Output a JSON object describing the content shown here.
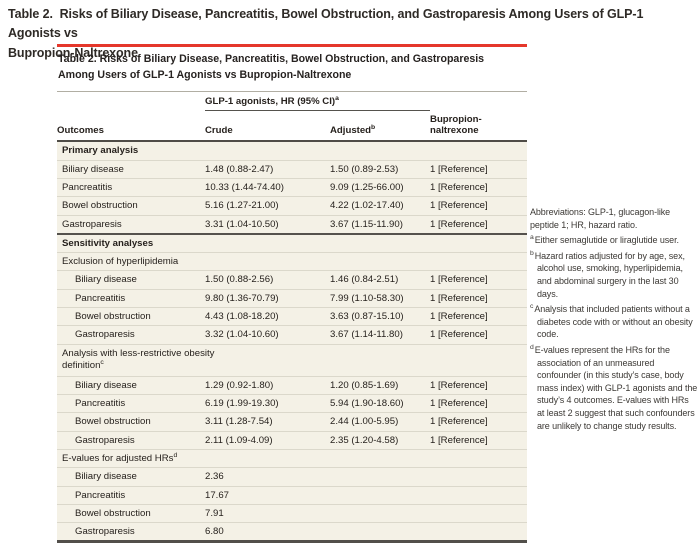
{
  "page_title": {
    "line1": "Table 2.  Risks of Biliary Disease, Pancreatitis, Bowel Obstruction, and Gastroparesis Among Users of GLP-1 Agonists vs",
    "line2": "Bupropion-Naltrexone"
  },
  "accent_color": "#e5372b",
  "table": {
    "title_line1": "Table 2. Risks of Biliary Disease, Pancreatitis, Bowel Obstruction, and Gastroparesis",
    "title_line2": "Among Users of GLP-1 Agonists vs Bupropion-Naltrexone",
    "header": {
      "group": "GLP-1 agonists, HR (95% CI)",
      "group_sup": "a",
      "outcomes": "Outcomes",
      "crude": "Crude",
      "adjusted": "Adjusted",
      "adjusted_sup": "b",
      "comparator": "Bupropion-naltrexone"
    },
    "rows": [
      {
        "kind": "section",
        "label": "Primary analysis"
      },
      {
        "kind": "data",
        "indent": 0,
        "outcome": "Biliary disease",
        "crude": "1.48 (0.88-2.47)",
        "adjusted": "1.50 (0.89-2.53)",
        "ref": "1 [Reference]"
      },
      {
        "kind": "data",
        "indent": 0,
        "outcome": "Pancreatitis",
        "crude": "10.33 (1.44-74.40)",
        "adjusted": "9.09 (1.25-66.00)",
        "ref": "1 [Reference]"
      },
      {
        "kind": "data",
        "indent": 0,
        "outcome": "Bowel obstruction",
        "crude": "5.16 (1.27-21.00)",
        "adjusted": "4.22 (1.02-17.40)",
        "ref": "1 [Reference]"
      },
      {
        "kind": "data",
        "indent": 0,
        "outcome": "Gastroparesis",
        "crude": "3.31 (1.04-10.50)",
        "adjusted": "3.67 (1.15-11.90)",
        "ref": "1 [Reference]"
      },
      {
        "kind": "section",
        "label": "Sensitivity analyses",
        "divider": true
      },
      {
        "kind": "subsection",
        "label": "Exclusion of hyperlipidemia",
        "sup": ""
      },
      {
        "kind": "data",
        "indent": 1,
        "outcome": "Biliary disease",
        "crude": "1.50 (0.88-2.56)",
        "adjusted": "1.46 (0.84-2.51)",
        "ref": "1 [Reference]"
      },
      {
        "kind": "data",
        "indent": 1,
        "outcome": "Pancreatitis",
        "crude": "9.80 (1.36-70.79)",
        "adjusted": "7.99 (1.10-58.30)",
        "ref": "1 [Reference]"
      },
      {
        "kind": "data",
        "indent": 1,
        "outcome": "Bowel obstruction",
        "crude": "4.43 (1.08-18.20)",
        "adjusted": "3.63 (0.87-15.10)",
        "ref": "1 [Reference]"
      },
      {
        "kind": "data",
        "indent": 1,
        "outcome": "Gastroparesis",
        "crude": "3.32 (1.04-10.60)",
        "adjusted": "3.67 (1.14-11.80)",
        "ref": "1 [Reference]"
      },
      {
        "kind": "subsection",
        "label": "Analysis with less-restrictive obesity definition",
        "sup": "c",
        "narrow": true
      },
      {
        "kind": "data",
        "indent": 1,
        "outcome": "Biliary disease",
        "crude": "1.29 (0.92-1.80)",
        "adjusted": "1.20 (0.85-1.69)",
        "ref": "1 [Reference]"
      },
      {
        "kind": "data",
        "indent": 1,
        "outcome": "Pancreatitis",
        "crude": "6.19 (1.99-19.30)",
        "adjusted": "5.94 (1.90-18.60)",
        "ref": "1 [Reference]"
      },
      {
        "kind": "data",
        "indent": 1,
        "outcome": "Bowel obstruction",
        "crude": "3.11 (1.28-7.54)",
        "adjusted": "2.44 (1.00-5.95)",
        "ref": "1 [Reference]"
      },
      {
        "kind": "data",
        "indent": 1,
        "outcome": "Gastroparesis",
        "crude": "2.11 (1.09-4.09)",
        "adjusted": "2.35 (1.20-4.58)",
        "ref": "1 [Reference]"
      },
      {
        "kind": "subsection",
        "label": "E-values for adjusted HRs",
        "sup": "d"
      },
      {
        "kind": "data",
        "indent": 1,
        "outcome": "Biliary disease",
        "crude": "2.36",
        "adjusted": "",
        "ref": ""
      },
      {
        "kind": "data",
        "indent": 1,
        "outcome": "Pancreatitis",
        "crude": "17.67",
        "adjusted": "",
        "ref": ""
      },
      {
        "kind": "data",
        "indent": 1,
        "outcome": "Bowel obstruction",
        "crude": "7.91",
        "adjusted": "",
        "ref": ""
      },
      {
        "kind": "data",
        "indent": 1,
        "outcome": "Gastroparesis",
        "crude": "6.80",
        "adjusted": "",
        "ref": ""
      }
    ]
  },
  "footnotes": {
    "abbreviations": "Abbreviations: GLP-1, glucagon-like peptide 1; HR, hazard ratio.",
    "notes": [
      {
        "sup": "a",
        "text": "Either semaglutide or liraglutide user."
      },
      {
        "sup": "b",
        "text": "Hazard ratios adjusted for by age, sex, alcohol use, smoking, hyperlipidemia, and abdominal surgery in the last 30 days."
      },
      {
        "sup": "c",
        "text": "Analysis that included patients without a diabetes code with or without an obesity code."
      },
      {
        "sup": "d",
        "text": "E-values represent the HRs for the association of an unmeasured confounder (in this study’s case, body mass index) with GLP-1 agonists and the study’s 4 outcomes. E-values with HRs at least 2 suggest that such confounders are unlikely to change study results."
      }
    ]
  }
}
